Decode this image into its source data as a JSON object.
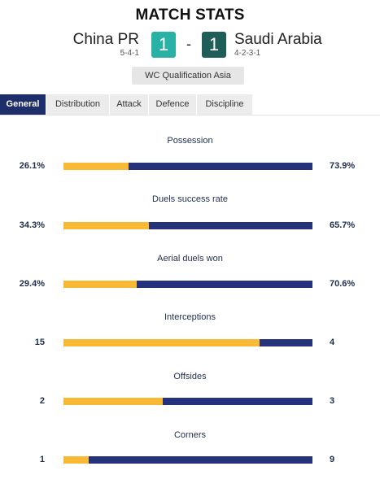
{
  "header": {
    "title": "MATCH STATS",
    "home": {
      "name": "China PR",
      "formation": "5-4-1",
      "score": "1"
    },
    "away": {
      "name": "Saudi Arabia",
      "formation": "4-2-3-1",
      "score": "1"
    },
    "separator": "-",
    "competition": "WC Qualification Asia"
  },
  "tabs": [
    {
      "label": "General",
      "active": true
    },
    {
      "label": "Distribution",
      "active": false
    },
    {
      "label": "Attack",
      "active": false
    },
    {
      "label": "Defence",
      "active": false
    },
    {
      "label": "Discipline",
      "active": false
    }
  ],
  "colors": {
    "home_bar": "#f8b934",
    "away_bar": "#25317a",
    "active_tab": "#1e2e6b"
  },
  "stats": [
    {
      "title": "Possession",
      "home": "26.1%",
      "away": "73.9%",
      "home_share": 0.261
    },
    {
      "title": "Duels success rate",
      "home": "34.3%",
      "away": "65.7%",
      "home_share": 0.343
    },
    {
      "title": "Aerial duels won",
      "home": "29.4%",
      "away": "70.6%",
      "home_share": 0.294
    },
    {
      "title": "Interceptions",
      "home": "15",
      "away": "4",
      "home_share": 0.789
    },
    {
      "title": "Offsides",
      "home": "2",
      "away": "3",
      "home_share": 0.4
    },
    {
      "title": "Corners",
      "home": "1",
      "away": "9",
      "home_share": 0.1
    }
  ]
}
